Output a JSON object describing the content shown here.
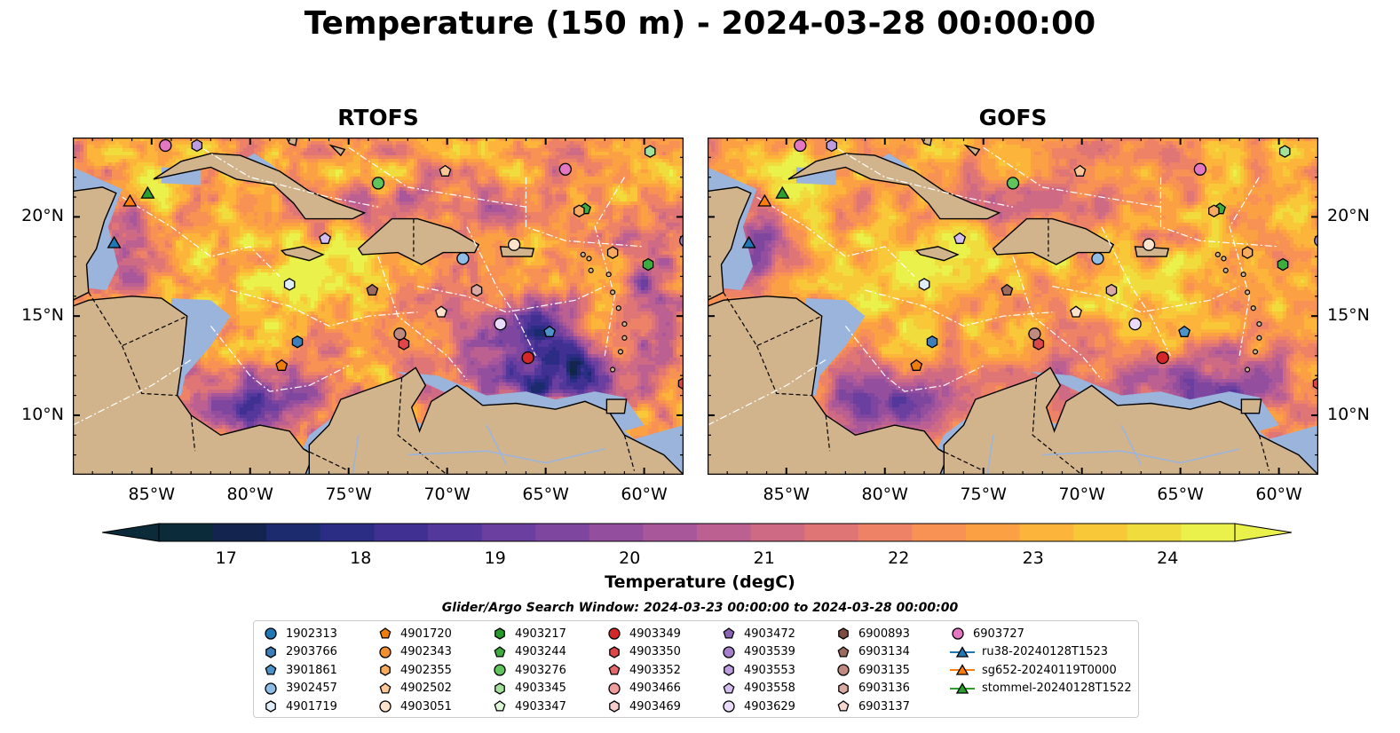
{
  "title": "Temperature (150 m) - 2024-03-28 00:00:00",
  "panels": [
    {
      "title": "RTOFS"
    },
    {
      "title": "GOFS"
    }
  ],
  "axes": {
    "x_labels": [
      "85°W",
      "80°W",
      "75°W",
      "70°W",
      "65°W",
      "60°W"
    ],
    "x_values": [
      -85,
      -80,
      -75,
      -70,
      -65,
      -60
    ],
    "y_labels": [
      "20°N",
      "15°N",
      "10°N"
    ],
    "y_values": [
      20,
      15,
      10
    ],
    "lon_range": [
      -89,
      -58
    ],
    "lat_range": [
      7,
      24
    ]
  },
  "colorbar": {
    "label": "Temperature (degC)",
    "tick_labels": [
      "17",
      "18",
      "19",
      "20",
      "21",
      "22",
      "23",
      "24"
    ],
    "tick_values": [
      17,
      18,
      19,
      20,
      21,
      22,
      23,
      24
    ],
    "range": [
      16.5,
      24.5
    ],
    "extend": "both",
    "colors": [
      "#0b2a3a",
      "#13244f",
      "#1c2a6e",
      "#2b2d85",
      "#3f3091",
      "#54379a",
      "#6a3f9f",
      "#7f469f",
      "#944e9e",
      "#a8579a",
      "#bc6092",
      "#cf6a85",
      "#e07576",
      "#ee8266",
      "#f79154",
      "#fba143",
      "#fcb43a",
      "#f9c838",
      "#f1dc3e",
      "#e9f14a"
    ]
  },
  "map_colors": {
    "land": "#d2b48c",
    "shelf": "#9ab4dc",
    "deep_cold": "#0b2a3a",
    "eez_line": "#ffffff",
    "coast": "#000000"
  },
  "legend": {
    "title": "Glider/Argo Search Window: 2024-03-23 00:00:00 to 2024-03-28 00:00:00",
    "items": [
      {
        "label": "1902313",
        "marker": "circle",
        "color": "#1f77b4"
      },
      {
        "label": "2903766",
        "marker": "hexagon",
        "color": "#3d7fb8"
      },
      {
        "label": "3901861",
        "marker": "pentagon",
        "color": "#4b93c9"
      },
      {
        "label": "3902457",
        "marker": "circle",
        "color": "#8fbde6"
      },
      {
        "label": "4901719",
        "marker": "hexagon",
        "color": "#e0eefa"
      },
      {
        "label": "4901720",
        "marker": "pentagon",
        "color": "#ef7d0e"
      },
      {
        "label": "4902343",
        "marker": "circle",
        "color": "#f28f30"
      },
      {
        "label": "4902355",
        "marker": "hexagon",
        "color": "#f8aa5f"
      },
      {
        "label": "4902502",
        "marker": "pentagon",
        "color": "#fbc797"
      },
      {
        "label": "4903051",
        "marker": "circle",
        "color": "#fde3cb"
      },
      {
        "label": "4903217",
        "marker": "hexagon",
        "color": "#249b28"
      },
      {
        "label": "4903244",
        "marker": "pentagon",
        "color": "#3cac3e"
      },
      {
        "label": "4903276",
        "marker": "circle",
        "color": "#5fc45c"
      },
      {
        "label": "4903345",
        "marker": "hexagon",
        "color": "#a2e19c"
      },
      {
        "label": "4903347",
        "marker": "pentagon",
        "color": "#ddf7d8"
      },
      {
        "label": "4903349",
        "marker": "circle",
        "color": "#d62728"
      },
      {
        "label": "4903350",
        "marker": "hexagon",
        "color": "#de4647"
      },
      {
        "label": "4903352",
        "marker": "pentagon",
        "color": "#e66a6b"
      },
      {
        "label": "4903466",
        "marker": "circle",
        "color": "#f19d9d"
      },
      {
        "label": "4903469",
        "marker": "hexagon",
        "color": "#f9cccc"
      },
      {
        "label": "4903472",
        "marker": "pentagon",
        "color": "#8c62b4"
      },
      {
        "label": "4903539",
        "marker": "circle",
        "color": "#a680cb"
      },
      {
        "label": "4903553",
        "marker": "hexagon",
        "color": "#bc9ee0"
      },
      {
        "label": "4903558",
        "marker": "pentagon",
        "color": "#d4bdef"
      },
      {
        "label": "4903629",
        "marker": "circle",
        "color": "#eadbfa"
      },
      {
        "label": "6900893",
        "marker": "hexagon",
        "color": "#7d4b3f"
      },
      {
        "label": "6903134",
        "marker": "pentagon",
        "color": "#9c6a5e"
      },
      {
        "label": "6903135",
        "marker": "circle",
        "color": "#c08a80"
      },
      {
        "label": "6903136",
        "marker": "hexagon",
        "color": "#dba9a3"
      },
      {
        "label": "6903137",
        "marker": "pentagon",
        "color": "#f8d6d2"
      },
      {
        "label": "6903727",
        "marker": "circle",
        "color": "#e377c2"
      },
      {
        "label": "ru38-20240128T1523",
        "marker": "triangle-line",
        "color": "#1f77b4"
      },
      {
        "label": "sg652-20240119T0000",
        "marker": "triangle-line",
        "color": "#ff7f0e"
      },
      {
        "label": "stommel-20240128T1522",
        "marker": "triangle-line",
        "color": "#2ca02c"
      }
    ]
  },
  "floats": [
    {
      "lon": -84.3,
      "lat": 23.6,
      "marker": "circle",
      "color": "#e377c2"
    },
    {
      "lon": -82.7,
      "lat": 23.6,
      "marker": "hexagon",
      "color": "#bc9ee0"
    },
    {
      "lon": -73.5,
      "lat": 21.7,
      "marker": "circle",
      "color": "#5fc45c"
    },
    {
      "lon": -70.1,
      "lat": 22.3,
      "marker": "pentagon",
      "color": "#fbc797"
    },
    {
      "lon": -64.0,
      "lat": 22.4,
      "marker": "circle",
      "color": "#e377c2"
    },
    {
      "lon": -63.0,
      "lat": 20.4,
      "marker": "pentagon",
      "color": "#3cac3e"
    },
    {
      "lon": -63.3,
      "lat": 20.3,
      "marker": "hexagon",
      "color": "#f8aa5f"
    },
    {
      "lon": -59.7,
      "lat": 23.3,
      "marker": "hexagon",
      "color": "#a2e19c"
    },
    {
      "lon": -76.2,
      "lat": 18.9,
      "marker": "pentagon",
      "color": "#d4bdef"
    },
    {
      "lon": -66.6,
      "lat": 18.6,
      "marker": "circle",
      "color": "#fde3cb"
    },
    {
      "lon": -69.2,
      "lat": 17.9,
      "marker": "circle",
      "color": "#8fbde6"
    },
    {
      "lon": -61.6,
      "lat": 18.2,
      "marker": "hexagon",
      "color": "#f8aa5f"
    },
    {
      "lon": -59.8,
      "lat": 17.6,
      "marker": "hexagon",
      "color": "#3cac3e"
    },
    {
      "lon": -78.0,
      "lat": 16.6,
      "marker": "hexagon",
      "color": "#e0eefa"
    },
    {
      "lon": -73.8,
      "lat": 16.3,
      "marker": "pentagon",
      "color": "#9c6a5e"
    },
    {
      "lon": -68.5,
      "lat": 16.3,
      "marker": "hexagon",
      "color": "#dba9a3"
    },
    {
      "lon": -70.3,
      "lat": 15.2,
      "marker": "pentagon",
      "color": "#fde3cb"
    },
    {
      "lon": -72.4,
      "lat": 14.1,
      "marker": "circle",
      "color": "#c08a80"
    },
    {
      "lon": -72.2,
      "lat": 13.6,
      "marker": "hexagon",
      "color": "#de4647"
    },
    {
      "lon": -77.6,
      "lat": 13.7,
      "marker": "hexagon",
      "color": "#3d7fb8"
    },
    {
      "lon": -67.3,
      "lat": 14.6,
      "marker": "circle",
      "color": "#eadbfa"
    },
    {
      "lon": -64.8,
      "lat": 14.2,
      "marker": "pentagon",
      "color": "#4b93c9"
    },
    {
      "lon": -78.4,
      "lat": 12.5,
      "marker": "pentagon",
      "color": "#ef7d0e"
    },
    {
      "lon": -65.9,
      "lat": 12.9,
      "marker": "circle",
      "color": "#d62728"
    },
    {
      "lon": -58.0,
      "lat": 11.6,
      "marker": "hexagon",
      "color": "#de4647"
    },
    {
      "lon": -57.9,
      "lat": 18.8,
      "marker": "circle",
      "color": "#a680cb"
    }
  ],
  "gliders": [
    {
      "lon": -86.1,
      "lat": 20.8,
      "color": "#ff7f0e"
    },
    {
      "lon": -85.2,
      "lat": 21.2,
      "color": "#2ca02c"
    },
    {
      "lon": -86.9,
      "lat": 18.7,
      "color": "#1f77b4"
    }
  ]
}
